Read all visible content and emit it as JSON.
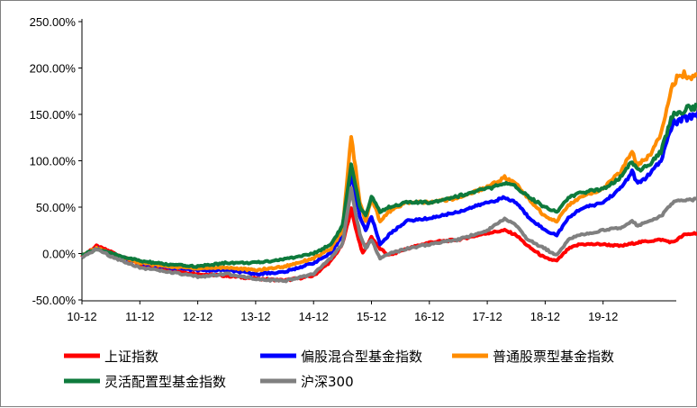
{
  "chart_data": {
    "type": "line",
    "x_ticks": [
      "10-12",
      "11-12",
      "12-12",
      "13-12",
      "14-12",
      "15-12",
      "16-12",
      "17-12",
      "18-12",
      "19-12"
    ],
    "y_ticks": [
      "250.00%",
      "200.00%",
      "150.00%",
      "100.00%",
      "50.00%",
      "0.00%",
      "-50.00%"
    ],
    "ylim": [
      -50,
      250
    ],
    "xlim": [
      0,
      10.9
    ],
    "grid": false,
    "legend_position": "bottom",
    "series": [
      {
        "name": "上证指数",
        "color": "#ff0000",
        "points": [
          [
            0,
            -3
          ],
          [
            0.25,
            8
          ],
          [
            0.5,
            2
          ],
          [
            1,
            -12
          ],
          [
            1.5,
            -18
          ],
          [
            2,
            -22
          ],
          [
            2.5,
            -24
          ],
          [
            3,
            -27
          ],
          [
            3.5,
            -29
          ],
          [
            4,
            -24
          ],
          [
            4.3,
            -8
          ],
          [
            4.5,
            10
          ],
          [
            4.65,
            48
          ],
          [
            4.75,
            22
          ],
          [
            4.85,
            0
          ],
          [
            5,
            18
          ],
          [
            5.15,
            5
          ],
          [
            5.3,
            -2
          ],
          [
            5.6,
            5
          ],
          [
            6,
            12
          ],
          [
            6.5,
            15
          ],
          [
            7,
            22
          ],
          [
            7.3,
            25
          ],
          [
            7.5,
            20
          ],
          [
            7.7,
            8
          ],
          [
            8,
            -5
          ],
          [
            8.2,
            -8
          ],
          [
            8.4,
            5
          ],
          [
            8.6,
            10
          ],
          [
            9,
            10
          ],
          [
            9.3,
            8
          ],
          [
            9.6,
            12
          ],
          [
            10,
            15
          ],
          [
            10.2,
            12
          ],
          [
            10.4,
            20
          ],
          [
            10.6,
            22
          ],
          [
            10.9,
            20
          ]
        ]
      },
      {
        "name": "偏股混合型基金指数",
        "color": "#0000ff",
        "points": [
          [
            0,
            -3
          ],
          [
            0.25,
            6
          ],
          [
            0.5,
            0
          ],
          [
            1,
            -10
          ],
          [
            1.5,
            -15
          ],
          [
            2,
            -18
          ],
          [
            2.5,
            -18
          ],
          [
            3,
            -22
          ],
          [
            3.5,
            -20
          ],
          [
            4,
            -10
          ],
          [
            4.3,
            0
          ],
          [
            4.5,
            20
          ],
          [
            4.65,
            85
          ],
          [
            4.8,
            40
          ],
          [
            4.9,
            25
          ],
          [
            5,
            40
          ],
          [
            5.15,
            10
          ],
          [
            5.3,
            20
          ],
          [
            5.6,
            35
          ],
          [
            6,
            38
          ],
          [
            6.5,
            45
          ],
          [
            7,
            55
          ],
          [
            7.3,
            60
          ],
          [
            7.5,
            55
          ],
          [
            7.7,
            40
          ],
          [
            8,
            25
          ],
          [
            8.2,
            20
          ],
          [
            8.4,
            38
          ],
          [
            8.6,
            48
          ],
          [
            9,
            55
          ],
          [
            9.3,
            70
          ],
          [
            9.5,
            88
          ],
          [
            9.6,
            75
          ],
          [
            9.8,
            85
          ],
          [
            10,
            100
          ],
          [
            10.2,
            140
          ],
          [
            10.4,
            145
          ],
          [
            10.6,
            150
          ],
          [
            10.9,
            165
          ]
        ]
      },
      {
        "name": "普通股票型基金指数",
        "color": "#ff8c00",
        "points": [
          [
            0,
            -3
          ],
          [
            0.25,
            6
          ],
          [
            0.5,
            0
          ],
          [
            1,
            -10
          ],
          [
            1.5,
            -14
          ],
          [
            2,
            -16
          ],
          [
            2.5,
            -15
          ],
          [
            3,
            -18
          ],
          [
            3.5,
            -14
          ],
          [
            4,
            -5
          ],
          [
            4.3,
            5
          ],
          [
            4.5,
            25
          ],
          [
            4.65,
            128
          ],
          [
            4.8,
            55
          ],
          [
            4.9,
            35
          ],
          [
            5,
            60
          ],
          [
            5.15,
            35
          ],
          [
            5.3,
            45
          ],
          [
            5.6,
            55
          ],
          [
            6,
            55
          ],
          [
            6.5,
            60
          ],
          [
            7,
            72
          ],
          [
            7.3,
            82
          ],
          [
            7.5,
            75
          ],
          [
            7.7,
            60
          ],
          [
            8,
            40
          ],
          [
            8.2,
            35
          ],
          [
            8.4,
            52
          ],
          [
            8.6,
            60
          ],
          [
            9,
            70
          ],
          [
            9.3,
            88
          ],
          [
            9.5,
            110
          ],
          [
            9.6,
            95
          ],
          [
            9.8,
            105
          ],
          [
            10,
            130
          ],
          [
            10.2,
            185
          ],
          [
            10.4,
            192
          ],
          [
            10.6,
            190
          ],
          [
            10.9,
            205
          ]
        ]
      },
      {
        "name": "灵活配置型基金指数",
        "color": "#0e7a3c",
        "points": [
          [
            0,
            -2
          ],
          [
            0.25,
            5
          ],
          [
            0.5,
            0
          ],
          [
            1,
            -8
          ],
          [
            1.5,
            -12
          ],
          [
            2,
            -14
          ],
          [
            2.5,
            -10
          ],
          [
            3,
            -10
          ],
          [
            3.5,
            -6
          ],
          [
            4,
            0
          ],
          [
            4.3,
            10
          ],
          [
            4.5,
            30
          ],
          [
            4.65,
            95
          ],
          [
            4.8,
            50
          ],
          [
            4.9,
            40
          ],
          [
            5,
            62
          ],
          [
            5.15,
            45
          ],
          [
            5.3,
            50
          ],
          [
            5.6,
            55
          ],
          [
            6,
            55
          ],
          [
            6.5,
            62
          ],
          [
            7,
            70
          ],
          [
            7.3,
            75
          ],
          [
            7.5,
            72
          ],
          [
            7.7,
            62
          ],
          [
            8,
            50
          ],
          [
            8.2,
            45
          ],
          [
            8.4,
            60
          ],
          [
            8.6,
            65
          ],
          [
            9,
            70
          ],
          [
            9.3,
            82
          ],
          [
            9.5,
            100
          ],
          [
            9.6,
            90
          ],
          [
            9.8,
            95
          ],
          [
            10,
            110
          ],
          [
            10.2,
            150
          ],
          [
            10.4,
            155
          ],
          [
            10.6,
            158
          ],
          [
            10.9,
            170
          ]
        ]
      },
      {
        "name": "沪深300",
        "color": "#808080",
        "points": [
          [
            0,
            -5
          ],
          [
            0.25,
            5
          ],
          [
            0.5,
            -3
          ],
          [
            1,
            -15
          ],
          [
            1.5,
            -20
          ],
          [
            2,
            -25
          ],
          [
            2.5,
            -22
          ],
          [
            3,
            -27
          ],
          [
            3.5,
            -30
          ],
          [
            4,
            -22
          ],
          [
            4.3,
            -5
          ],
          [
            4.5,
            10
          ],
          [
            4.65,
            70
          ],
          [
            4.8,
            20
          ],
          [
            4.9,
            5
          ],
          [
            5,
            15
          ],
          [
            5.15,
            -5
          ],
          [
            5.3,
            0
          ],
          [
            5.6,
            5
          ],
          [
            6,
            10
          ],
          [
            6.5,
            15
          ],
          [
            7,
            25
          ],
          [
            7.3,
            38
          ],
          [
            7.5,
            30
          ],
          [
            7.7,
            15
          ],
          [
            8,
            5
          ],
          [
            8.2,
            -2
          ],
          [
            8.4,
            15
          ],
          [
            8.6,
            20
          ],
          [
            9,
            25
          ],
          [
            9.3,
            28
          ],
          [
            9.5,
            35
          ],
          [
            9.6,
            30
          ],
          [
            9.8,
            35
          ],
          [
            10,
            40
          ],
          [
            10.2,
            55
          ],
          [
            10.4,
            58
          ],
          [
            10.6,
            58
          ],
          [
            10.9,
            63
          ]
        ]
      }
    ]
  }
}
